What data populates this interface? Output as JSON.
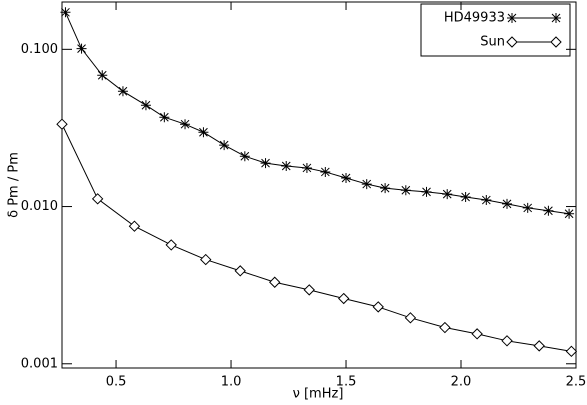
{
  "chart_data": {
    "type": "line",
    "xlabel": "ν [mHz]",
    "ylabel": "δ Pm / Pm",
    "log_y": true,
    "legend": "upper right",
    "xlim": [
      0.265,
      2.5
    ],
    "ylim": [
      0.00094,
      0.2
    ],
    "xticks": [
      0.5,
      {
        "value": 1.0,
        "label": "1.0"
      },
      1.5,
      {
        "value": 2.0,
        "label": "2.0"
      },
      2.5
    ],
    "yticks": [
      {
        "value": 0.001,
        "label": "0.001"
      },
      {
        "value": 0.01,
        "label": "0.010"
      },
      {
        "value": 0.1,
        "label": "0.100"
      }
    ],
    "series": [
      {
        "name": "HD49933",
        "color": "#000000",
        "marker": "star",
        "x": [
          0.28,
          0.35,
          0.44,
          0.53,
          0.63,
          0.71,
          0.8,
          0.88,
          0.97,
          1.06,
          1.15,
          1.24,
          1.33,
          1.41,
          1.5,
          1.59,
          1.67,
          1.76,
          1.85,
          1.94,
          2.02,
          2.11,
          2.2,
          2.29,
          2.38,
          2.47
        ],
        "values": [
          0.172,
          0.101,
          0.0684,
          0.0541,
          0.0441,
          0.037,
          0.0334,
          0.0297,
          0.0246,
          0.0209,
          0.0189,
          0.0181,
          0.0176,
          0.0166,
          0.0152,
          0.0139,
          0.0131,
          0.0127,
          0.0124,
          0.012,
          0.0115,
          0.011,
          0.0104,
          0.0098,
          0.0094,
          0.009
        ]
      },
      {
        "name": "Sun",
        "color": "#000000",
        "marker": "diamond",
        "x": [
          0.265,
          0.42,
          0.58,
          0.74,
          0.89,
          1.04,
          1.19,
          1.34,
          1.49,
          1.64,
          1.78,
          1.93,
          2.07,
          2.2,
          2.34,
          2.48
        ],
        "values": [
          0.0334,
          0.0112,
          0.0075,
          0.0057,
          0.0046,
          0.0039,
          0.0033,
          0.00295,
          0.0026,
          0.0023,
          0.00196,
          0.0017,
          0.00155,
          0.0014,
          0.0013,
          0.0012
        ]
      }
    ]
  }
}
